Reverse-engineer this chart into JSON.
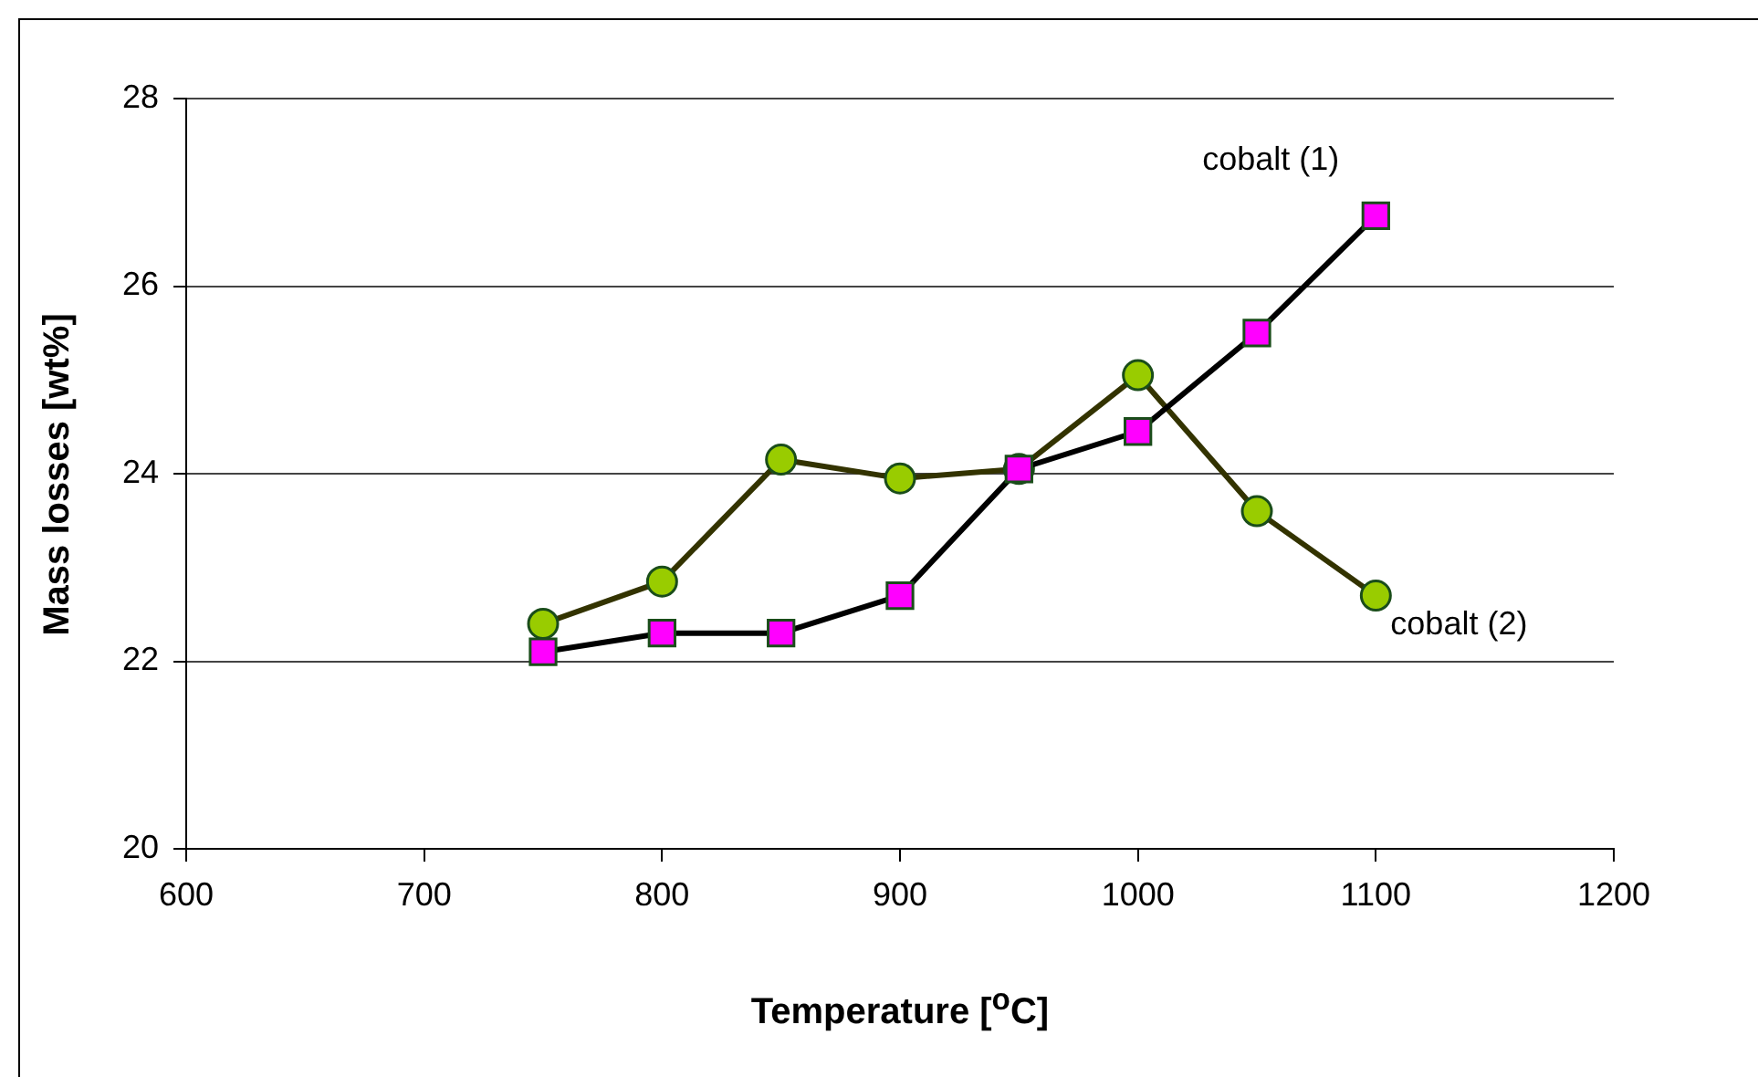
{
  "chart_data": {
    "type": "line",
    "xlabel": "Temperature [$^{o}$C]",
    "ylabel": "Mass losses [wt%]",
    "x": [
      750,
      800,
      850,
      900,
      950,
      1000,
      1050,
      1100
    ],
    "series": [
      {
        "name": "cobalt (1)",
        "color": "#000000",
        "colors": [
          "#ff00ff",
          "#ff00ff",
          "#ff00ff",
          "#ff00ff",
          "#ff00ff",
          "#ff00ff",
          "#ff00ff",
          "#ff00ff"
        ],
        "marker": "square",
        "values": [
          22.1,
          22.3,
          22.3,
          22.7,
          24.05,
          24.45,
          25.5,
          26.75
        ]
      },
      {
        "name": "cobalt (2)",
        "color": "#333300",
        "colors": [
          "#99cc00",
          "#99cc00",
          "#99cc00",
          "#99cc00",
          "#99cc00",
          "#99cc00",
          "#99cc00",
          "#99cc00"
        ],
        "marker": "circle",
        "values": [
          22.4,
          22.85,
          24.15,
          23.95,
          24.05,
          25.05,
          23.6,
          22.7
        ]
      }
    ],
    "xlim": [
      600,
      1200
    ],
    "xticks": [
      600,
      700,
      800,
      900,
      1000,
      1100,
      1200
    ],
    "ylim": [
      20,
      28
    ],
    "yticks": [
      20,
      22,
      24,
      26,
      28
    ],
    "grid": "y",
    "legend": false
  }
}
